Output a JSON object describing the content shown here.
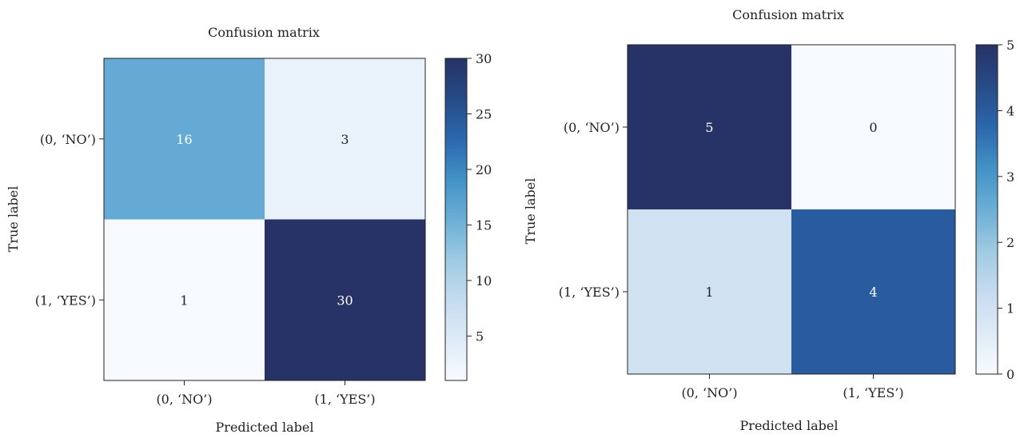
{
  "chart_data": [
    {
      "type": "heatmap",
      "title": "Confusion matrix",
      "xlabel": "Predicted label",
      "ylabel": "True label",
      "x_categories": [
        "(0, ‘NO’)",
        "(1, ‘YES’)"
      ],
      "y_categories": [
        "(0, ‘NO’)",
        "(1, ‘YES’)"
      ],
      "values": [
        [
          16,
          3
        ],
        [
          1,
          30
        ]
      ],
      "colormap": "Blues",
      "colorbar": {
        "min": 1,
        "max": 30,
        "ticks": [
          5,
          10,
          15,
          20,
          25,
          30
        ]
      }
    },
    {
      "type": "heatmap",
      "title": "Confusion matrix",
      "xlabel": "Predicted label",
      "ylabel": "True label",
      "x_categories": [
        "(0, ‘NO’)",
        "(1, ‘YES’)"
      ],
      "y_categories": [
        "(0, ‘NO’)",
        "(1, ‘YES’)"
      ],
      "values": [
        [
          5,
          0
        ],
        [
          1,
          4
        ]
      ],
      "colormap": "Blues",
      "colorbar": {
        "min": 0,
        "max": 5,
        "ticks": [
          0,
          1,
          2,
          3,
          4,
          5
        ]
      }
    }
  ]
}
